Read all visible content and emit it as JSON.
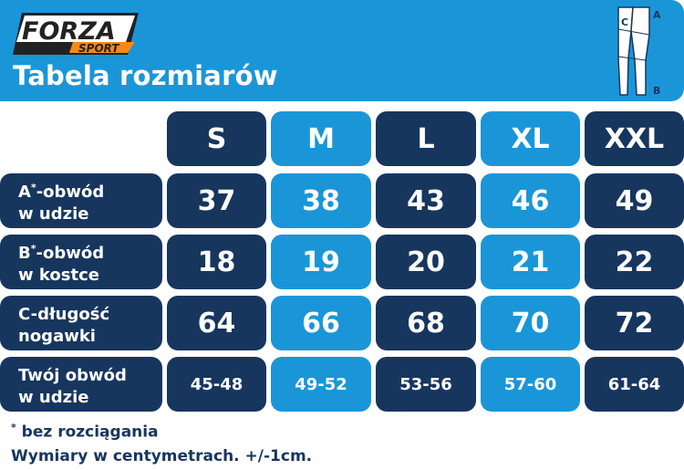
{
  "header": {
    "logo_text": "FORZA",
    "logo_subtext": "SPORT",
    "title": "Tabela rozmiarów",
    "diagram_labels": {
      "a": "A",
      "b": "B",
      "c": "C"
    }
  },
  "colors": {
    "navy": "#17365e",
    "blue": "#1a96d8",
    "logo_orange": "#f08a1c"
  },
  "table": {
    "sizes": [
      "S",
      "M",
      "L",
      "XL",
      "XXL"
    ],
    "rows": [
      {
        "label_line1": "A",
        "label_mark": "*",
        "label_rest": "-obwód",
        "label_line2": "w udzie",
        "values": [
          "37",
          "38",
          "43",
          "46",
          "49"
        ]
      },
      {
        "label_line1": "B",
        "label_mark": "*",
        "label_rest": "-obwód",
        "label_line2": "w kostce",
        "values": [
          "18",
          "19",
          "20",
          "21",
          "22"
        ]
      },
      {
        "label_line1": "C-długość",
        "label_mark": "",
        "label_rest": "",
        "label_line2": "nogawki",
        "values": [
          "64",
          "66",
          "68",
          "70",
          "72"
        ]
      },
      {
        "label_line1": "Twój obwód",
        "label_mark": "",
        "label_rest": "",
        "label_line2": "w udzie",
        "values": [
          "45-48",
          "49-52",
          "53-56",
          "57-60",
          "61-64"
        ]
      }
    ]
  },
  "footer": {
    "note_mark": "*",
    "note": " bez rozciągania",
    "units": "Wymiary w centymetrach. +/-1cm."
  }
}
